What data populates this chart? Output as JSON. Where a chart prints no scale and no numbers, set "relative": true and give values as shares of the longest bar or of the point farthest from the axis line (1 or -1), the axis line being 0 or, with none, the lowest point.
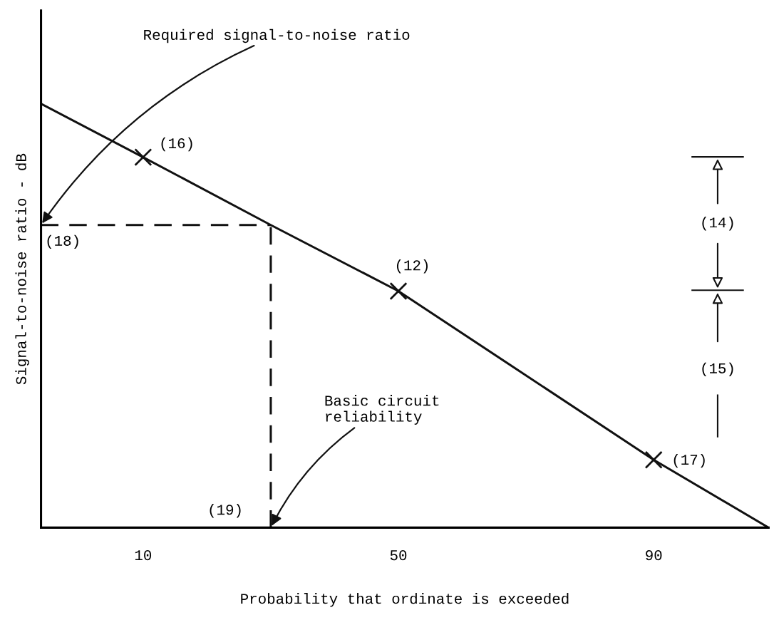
{
  "chart_data": {
    "type": "line",
    "relative": true,
    "xlabel": "Probability that ordinate is exceeded",
    "ylabel": "Signal-to-noise ratio - dB",
    "xlim": [
      -6,
      108
    ],
    "xticks": [
      10,
      50,
      90
    ],
    "tick_labels": "x",
    "grid": false,
    "series": [
      {
        "color": "#111111",
        "line_style": "solid",
        "x": [
          -6,
          10,
          30,
          50,
          90,
          108
        ],
        "values": [
          1,
          0.874,
          0.714,
          0.558,
          0.16,
          0
        ]
      },
      {
        "type": "line",
        "color": "#111111",
        "line_style": "dashed",
        "x": [
          -6,
          30
        ],
        "values": [
          0.714,
          0.714
        ]
      },
      {
        "type": "line",
        "color": "#111111",
        "line_style": "dashed",
        "x": [
          30,
          30
        ],
        "values": [
          0,
          0.714
        ]
      },
      {
        "type": "scatter",
        "color": "#111111",
        "marker": "cross",
        "x": [
          10,
          50,
          90
        ],
        "values": [
          0.874,
          0.558,
          0.16
        ]
      }
    ],
    "annotations": [
      {
        "text": "(16)",
        "x": 10,
        "y": 0.874
      },
      {
        "text": "(12)",
        "x": 50,
        "y": 0.558
      },
      {
        "text": "(17)",
        "x": 90,
        "y": 0.16
      },
      {
        "text": "(18)",
        "x": -6,
        "y": 0.714
      },
      {
        "text": "(19)",
        "x": 30,
        "y": 0
      },
      {
        "text": "Required signal-to-noise ratio",
        "x": -6,
        "y": 0.714
      },
      {
        "text": "Basic circuit\nreliability",
        "x": 30,
        "y": 0
      },
      "(14)",
      "(15)"
    ]
  }
}
